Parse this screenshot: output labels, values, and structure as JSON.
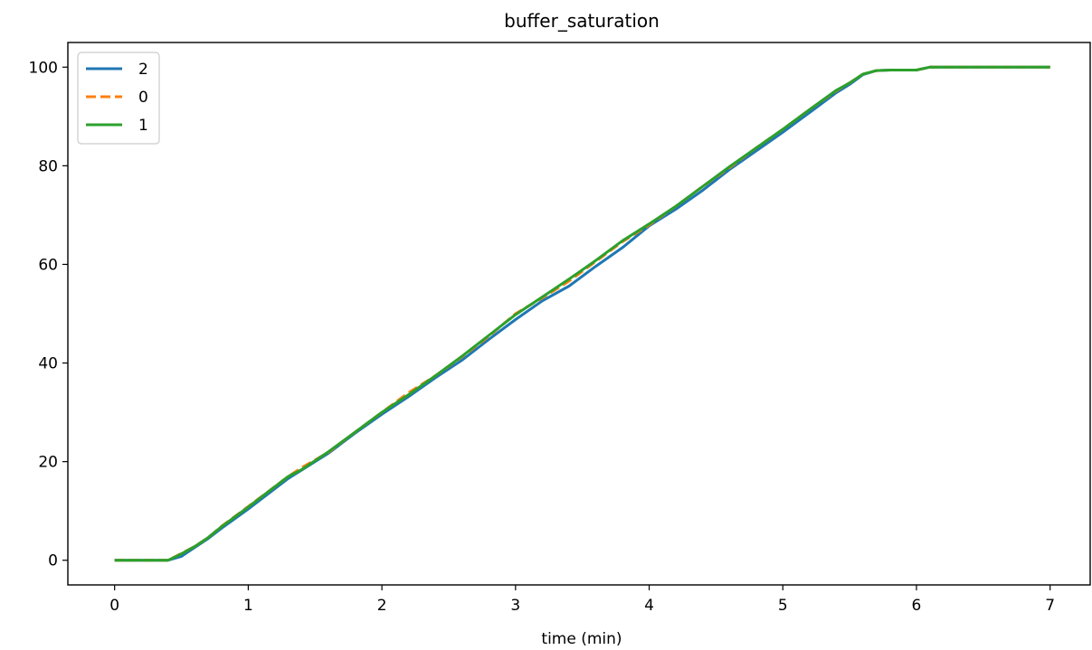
{
  "chart_data": {
    "type": "line",
    "title": "buffer_saturation",
    "xlabel": "time (min)",
    "ylabel": "",
    "xlim": [
      -0.35,
      7.3
    ],
    "ylim": [
      -5,
      105
    ],
    "xticks": [
      0,
      1,
      2,
      3,
      4,
      5,
      6,
      7
    ],
    "yticks": [
      0,
      20,
      40,
      60,
      80,
      100
    ],
    "grid": false,
    "legend_position": "top-left",
    "series": [
      {
        "name": "2",
        "color": "#1f77b4",
        "dash": "solid",
        "x": [
          0,
          0.1,
          0.2,
          0.3,
          0.4,
          0.5,
          0.6,
          0.7,
          0.8,
          1.0,
          1.3,
          1.5,
          1.6,
          1.8,
          2.0,
          2.2,
          2.4,
          2.6,
          2.8,
          3.0,
          3.2,
          3.4,
          3.6,
          3.8,
          4.0,
          4.2,
          4.4,
          4.6,
          4.8,
          5.0,
          5.2,
          5.4,
          5.5,
          5.6,
          5.7,
          5.8,
          5.9,
          6.0,
          6.1,
          6.2,
          6.5,
          7.0
        ],
        "y": [
          0,
          0,
          0,
          0,
          0,
          0.8,
          2.6,
          4.4,
          6.5,
          10.4,
          16.6,
          20,
          21.7,
          25.8,
          29.6,
          33.2,
          37,
          40.6,
          44.8,
          48.8,
          52.6,
          55.6,
          59.6,
          63.4,
          67.8,
          71.2,
          75,
          79.2,
          83,
          86.8,
          90.8,
          94.8,
          96.5,
          98.5,
          99.3,
          99.4,
          99.4,
          99.4,
          100,
          100,
          100,
          100
        ]
      },
      {
        "name": "0",
        "color": "#ff7f0e",
        "dash": "dashed",
        "x": [
          0,
          0.1,
          0.2,
          0.3,
          0.4,
          0.5,
          0.6,
          0.7,
          0.8,
          1.0,
          1.3,
          1.4,
          1.6,
          1.8,
          2.0,
          2.2,
          2.4,
          2.6,
          2.8,
          3.0,
          3.2,
          3.4,
          3.6,
          3.8,
          4.0,
          4.2,
          4.4,
          4.6,
          4.8,
          5.0,
          5.2,
          5.4,
          5.5,
          5.6,
          5.7,
          5.8,
          5.9,
          6.0,
          6.1,
          6.2,
          6.5,
          7.0
        ],
        "y": [
          0,
          0,
          0,
          0,
          0,
          1.4,
          2.8,
          4.6,
          6.9,
          10.9,
          17,
          18.8,
          21.9,
          26,
          30,
          34,
          37.4,
          41.3,
          45.4,
          50,
          53.2,
          56.6,
          60.6,
          64.6,
          68,
          71.8,
          75.8,
          79.6,
          83.6,
          87.4,
          91.4,
          95.2,
          96.8,
          98.6,
          99.3,
          99.4,
          99.4,
          99.4,
          100,
          100,
          100,
          100
        ]
      },
      {
        "name": "1",
        "color": "#2ca02c",
        "dash": "solid",
        "x": [
          0,
          0.1,
          0.2,
          0.3,
          0.4,
          0.5,
          0.6,
          0.7,
          0.8,
          1.0,
          1.3,
          1.4,
          1.6,
          1.8,
          2.0,
          2.2,
          2.4,
          2.6,
          2.8,
          3.0,
          3.2,
          3.4,
          3.6,
          3.8,
          4.0,
          4.2,
          4.4,
          4.6,
          4.8,
          5.0,
          5.2,
          5.4,
          5.5,
          5.6,
          5.7,
          5.8,
          5.9,
          6.0,
          6.1,
          6.2,
          6.5,
          7.0
        ],
        "y": [
          0,
          0,
          0,
          0,
          0,
          1.3,
          2.8,
          4.6,
          6.8,
          10.8,
          17,
          18.4,
          22,
          26,
          30,
          33.6,
          37.4,
          41.4,
          45.6,
          49.8,
          53.4,
          57,
          60.8,
          64.8,
          68.2,
          71.8,
          75.8,
          79.8,
          83.6,
          87.4,
          91.4,
          95.3,
          96.8,
          98.6,
          99.3,
          99.4,
          99.4,
          99.4,
          100,
          100,
          100,
          100
        ]
      }
    ]
  }
}
